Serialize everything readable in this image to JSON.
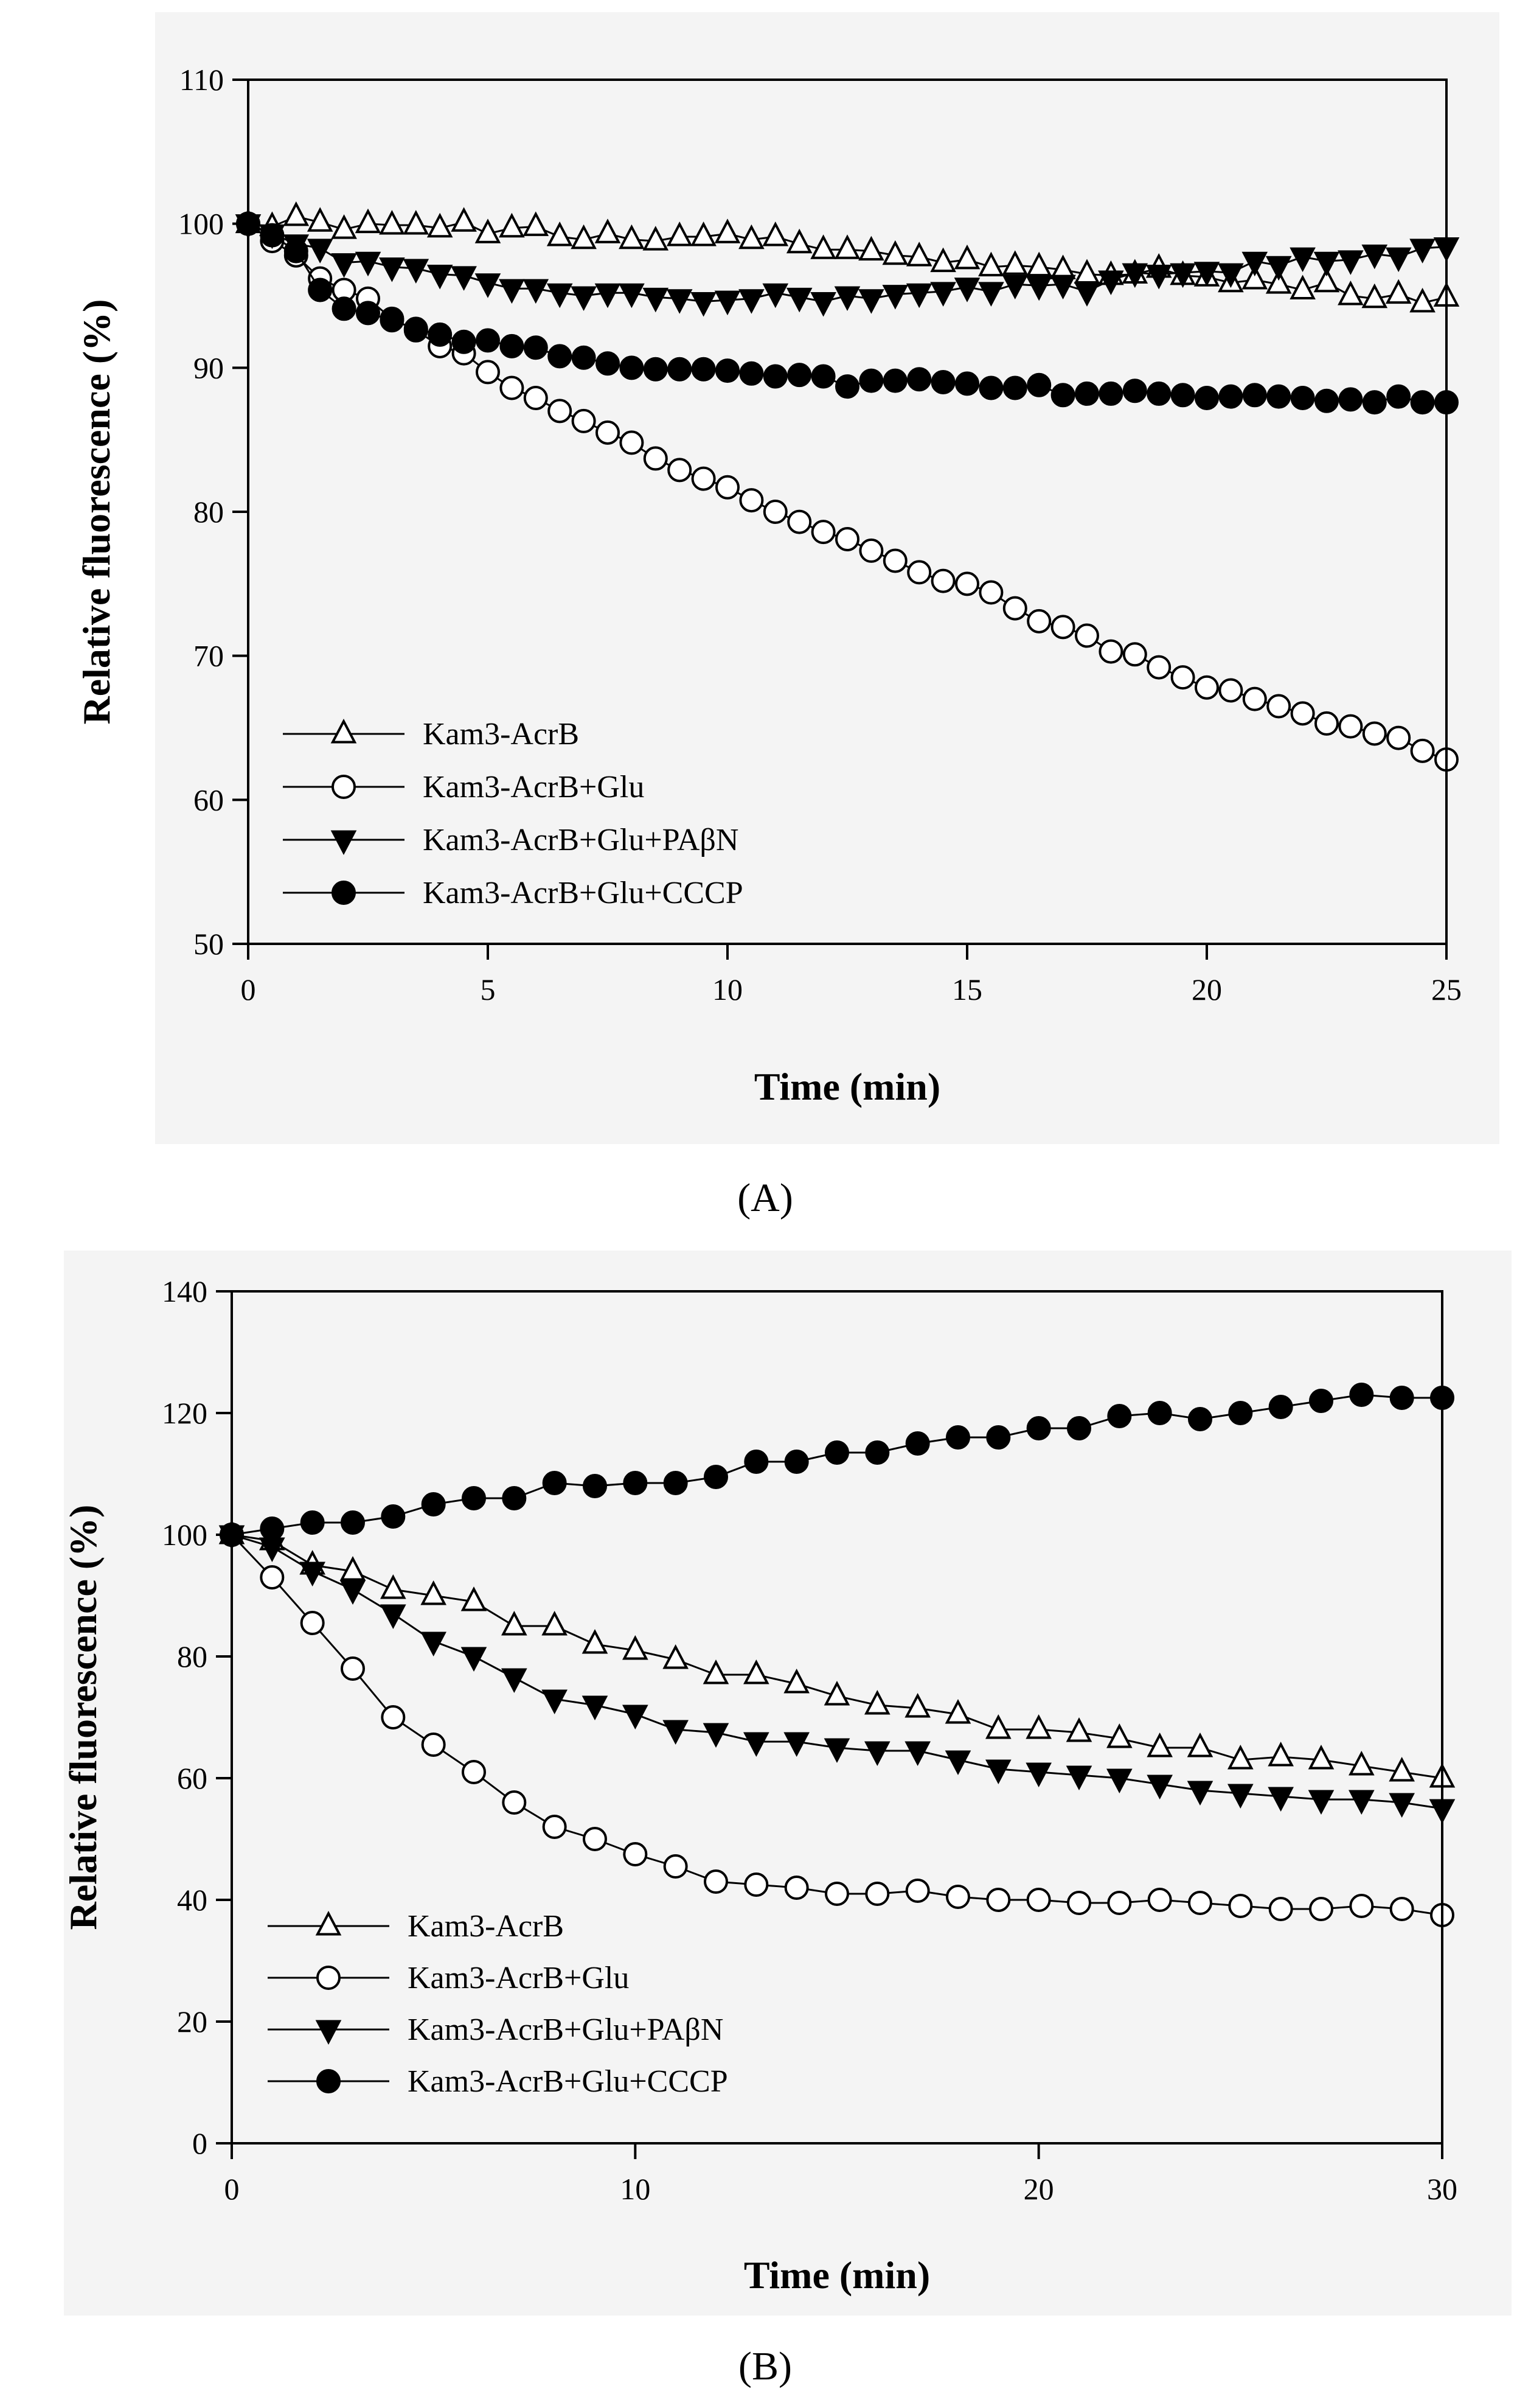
{
  "chart_data": [
    {
      "type": "line",
      "panel": "A",
      "panel_caption": "(A)",
      "xlabel": "Time (min)",
      "ylabel": "Relative fluorescence (%)",
      "xlim": [
        0,
        25
      ],
      "ylim": [
        50,
        110
      ],
      "xticks": [
        0,
        5,
        10,
        15,
        20,
        25
      ],
      "yticks": [
        50,
        60,
        70,
        80,
        90,
        100,
        110
      ],
      "legend_position": "bottom-left",
      "series": [
        {
          "name": "Kam3-AcrB",
          "marker": "triangle-up-open",
          "x": [
            0,
            0.5,
            1,
            1.5,
            2,
            2.5,
            3,
            3.5,
            4,
            4.5,
            5,
            5.5,
            6,
            6.5,
            7,
            7.5,
            8,
            8.5,
            9,
            9.5,
            10,
            10.5,
            11,
            11.5,
            12,
            12.5,
            13,
            13.5,
            14,
            14.5,
            15,
            15.5,
            16,
            16.5,
            17,
            17.5,
            18,
            18.5,
            19,
            19.5,
            20,
            20.5,
            21,
            21.5,
            22,
            22.5,
            23,
            23.5,
            24,
            24.5,
            25
          ],
          "y": [
            100,
            99.8,
            100.5,
            100.1,
            99.6,
            100,
            99.9,
            99.9,
            99.7,
            100.1,
            99.3,
            99.7,
            99.8,
            99.1,
            98.9,
            99.3,
            98.9,
            98.8,
            99.1,
            99.1,
            99.3,
            98.9,
            99.1,
            98.6,
            98.2,
            98.2,
            98.1,
            97.8,
            97.7,
            97.3,
            97.5,
            97,
            97.1,
            97,
            96.8,
            96.5,
            96.4,
            96.5,
            96.9,
            96.4,
            96.3,
            95.9,
            96.1,
            95.8,
            95.4,
            95.9,
            95,
            94.8,
            95.1,
            94.5,
            94.9
          ]
        },
        {
          "name": "Kam3-AcrB+Glu",
          "marker": "circle-open",
          "x": [
            0,
            0.5,
            1,
            1.5,
            2,
            2.5,
            3,
            3.5,
            4,
            4.5,
            5,
            5.5,
            6,
            6.5,
            7,
            7.5,
            8,
            8.5,
            9,
            9.5,
            10,
            10.5,
            11,
            11.5,
            12,
            12.5,
            13,
            13.5,
            14,
            14.5,
            15,
            15.5,
            16,
            16.5,
            17,
            17.5,
            18,
            18.5,
            19,
            19.5,
            20,
            20.5,
            21,
            21.5,
            22,
            22.5,
            23,
            23.5,
            24,
            24.5,
            25
          ],
          "y": [
            100,
            98.8,
            97.8,
            96.2,
            95.4,
            94.8,
            93.4,
            92.6,
            91.5,
            91,
            89.7,
            88.6,
            87.9,
            87,
            86.3,
            85.5,
            84.8,
            83.7,
            82.9,
            82.3,
            81.7,
            80.8,
            80,
            79.3,
            78.6,
            78.1,
            77.3,
            76.6,
            75.8,
            75.2,
            75,
            74.4,
            73.3,
            72.4,
            72,
            71.4,
            70.3,
            70.1,
            69.2,
            68.5,
            67.8,
            67.6,
            67,
            66.5,
            66,
            65.3,
            65.1,
            64.6,
            64.3,
            63.4,
            62.8
          ]
        },
        {
          "name": "Kam3-AcrB+Glu+PAβN",
          "marker": "triangle-down-filled",
          "x": [
            0,
            0.5,
            1,
            1.5,
            2,
            2.5,
            3,
            3.5,
            4,
            4.5,
            5,
            5.5,
            6,
            6.5,
            7,
            7.5,
            8,
            8.5,
            9,
            9.5,
            10,
            10.5,
            11,
            11.5,
            12,
            12.5,
            13,
            13.5,
            14,
            14.5,
            15,
            15.5,
            16,
            16.5,
            17,
            17.5,
            18,
            18.5,
            19,
            19.5,
            20,
            20.5,
            21,
            21.5,
            22,
            22.5,
            23,
            23.5,
            24,
            24.5,
            25
          ],
          "y": [
            100,
            99.3,
            98.6,
            98.3,
            97.3,
            97.4,
            97,
            96.9,
            96.5,
            96.4,
            95.9,
            95.5,
            95.5,
            95.2,
            95,
            95.2,
            95.2,
            94.9,
            94.8,
            94.6,
            94.7,
            94.8,
            95.2,
            94.9,
            94.6,
            95,
            94.8,
            95.1,
            95.2,
            95.3,
            95.6,
            95.3,
            95.8,
            95.7,
            95.8,
            95.3,
            96.1,
            96.6,
            96.5,
            96.6,
            96.7,
            96.6,
            97.4,
            97.1,
            97.7,
            97.4,
            97.5,
            97.9,
            97.7,
            98.3,
            98.4
          ]
        },
        {
          "name": "Kam3-AcrB+Glu+CCCP",
          "marker": "circle-filled",
          "x": [
            0,
            0.5,
            1,
            1.5,
            2,
            2.5,
            3,
            3.5,
            4,
            4.5,
            5,
            5.5,
            6,
            6.5,
            7,
            7.5,
            8,
            8.5,
            9,
            9.5,
            10,
            10.5,
            11,
            11.5,
            12,
            12.5,
            13,
            13.5,
            14,
            14.5,
            15,
            15.5,
            16,
            16.5,
            17,
            17.5,
            18,
            18.5,
            19,
            19.5,
            20,
            20.5,
            21,
            21.5,
            22,
            22.5,
            23,
            23.5,
            24,
            24.5,
            25
          ],
          "y": [
            100,
            99.2,
            98.1,
            95.4,
            94.1,
            93.8,
            93.3,
            92.7,
            92.3,
            91.8,
            91.9,
            91.5,
            91.4,
            90.8,
            90.7,
            90.3,
            90,
            89.9,
            89.9,
            89.9,
            89.8,
            89.6,
            89.4,
            89.5,
            89.4,
            88.7,
            89.1,
            89.1,
            89.2,
            89,
            88.9,
            88.6,
            88.6,
            88.8,
            88.1,
            88.2,
            88.2,
            88.4,
            88.2,
            88.1,
            87.9,
            88,
            88.1,
            88,
            87.9,
            87.7,
            87.8,
            87.6,
            88,
            87.6,
            87.6
          ]
        }
      ]
    },
    {
      "type": "line",
      "panel": "B",
      "panel_caption": "(B)",
      "xlabel": "Time (min)",
      "ylabel": "Relative fluorescence (%)",
      "xlim": [
        0,
        30
      ],
      "ylim": [
        0,
        140
      ],
      "xticks": [
        0,
        10,
        20,
        30
      ],
      "yticks": [
        0,
        20,
        40,
        60,
        80,
        100,
        120,
        140
      ],
      "legend_position": "bottom-left",
      "series": [
        {
          "name": "Kam3-AcrB",
          "marker": "triangle-up-open",
          "x": [
            0,
            1,
            2,
            3,
            4,
            5,
            6,
            7,
            8,
            9,
            10,
            11,
            12,
            13,
            14,
            15,
            16,
            17,
            18,
            19,
            20,
            21,
            22,
            23,
            24,
            25,
            26,
            27,
            28,
            29,
            30
          ],
          "y": [
            100,
            99,
            95,
            94,
            91,
            90,
            89,
            85,
            85,
            82,
            81,
            79.5,
            77,
            77,
            75.5,
            73.5,
            72,
            71.5,
            70.5,
            68,
            68,
            67.5,
            66.5,
            65,
            65,
            63,
            63.5,
            63,
            62,
            61,
            60
          ]
        },
        {
          "name": "Kam3-AcrB+Glu",
          "marker": "circle-open",
          "x": [
            0,
            1,
            2,
            3,
            4,
            5,
            6,
            7,
            8,
            9,
            10,
            11,
            12,
            13,
            14,
            15,
            16,
            17,
            18,
            19,
            20,
            21,
            22,
            23,
            24,
            25,
            26,
            27,
            28,
            29,
            30
          ],
          "y": [
            100,
            93,
            85.5,
            78,
            70,
            65.5,
            61,
            56,
            52,
            50,
            47.5,
            45.5,
            43,
            42.5,
            42,
            41,
            41,
            41.5,
            40.5,
            40,
            40,
            39.5,
            39.5,
            40,
            39.5,
            39,
            38.5,
            38.5,
            39,
            38.5,
            37.5
          ]
        },
        {
          "name": "Kam3-AcrB+Glu+PAβN",
          "marker": "triangle-down-filled",
          "x": [
            0,
            1,
            2,
            3,
            4,
            5,
            6,
            7,
            8,
            9,
            10,
            11,
            12,
            13,
            14,
            15,
            16,
            17,
            18,
            19,
            20,
            21,
            22,
            23,
            24,
            25,
            26,
            27,
            28,
            29,
            30
          ],
          "y": [
            100,
            98,
            94,
            91,
            87,
            82.5,
            80,
            76.5,
            73,
            72,
            70.5,
            68,
            67.5,
            66,
            66,
            65,
            64.5,
            64.5,
            63,
            61.5,
            61,
            60.5,
            60,
            59,
            58,
            57.5,
            57,
            56.5,
            56.5,
            56,
            55
          ]
        },
        {
          "name": "Kam3-AcrB+Glu+CCCP",
          "marker": "circle-filled",
          "x": [
            0,
            1,
            2,
            3,
            4,
            5,
            6,
            7,
            8,
            9,
            10,
            11,
            12,
            13,
            14,
            15,
            16,
            17,
            18,
            19,
            20,
            21,
            22,
            23,
            24,
            25,
            26,
            27,
            28,
            29,
            30
          ],
          "y": [
            100,
            101,
            102,
            102,
            103,
            105,
            106,
            106,
            108.5,
            108,
            108.5,
            108.5,
            109.5,
            112,
            112,
            113.5,
            113.5,
            115,
            116,
            116,
            117.5,
            117.5,
            119.5,
            120,
            119,
            120,
            121,
            122,
            123,
            122.5,
            122.5
          ]
        }
      ]
    }
  ]
}
